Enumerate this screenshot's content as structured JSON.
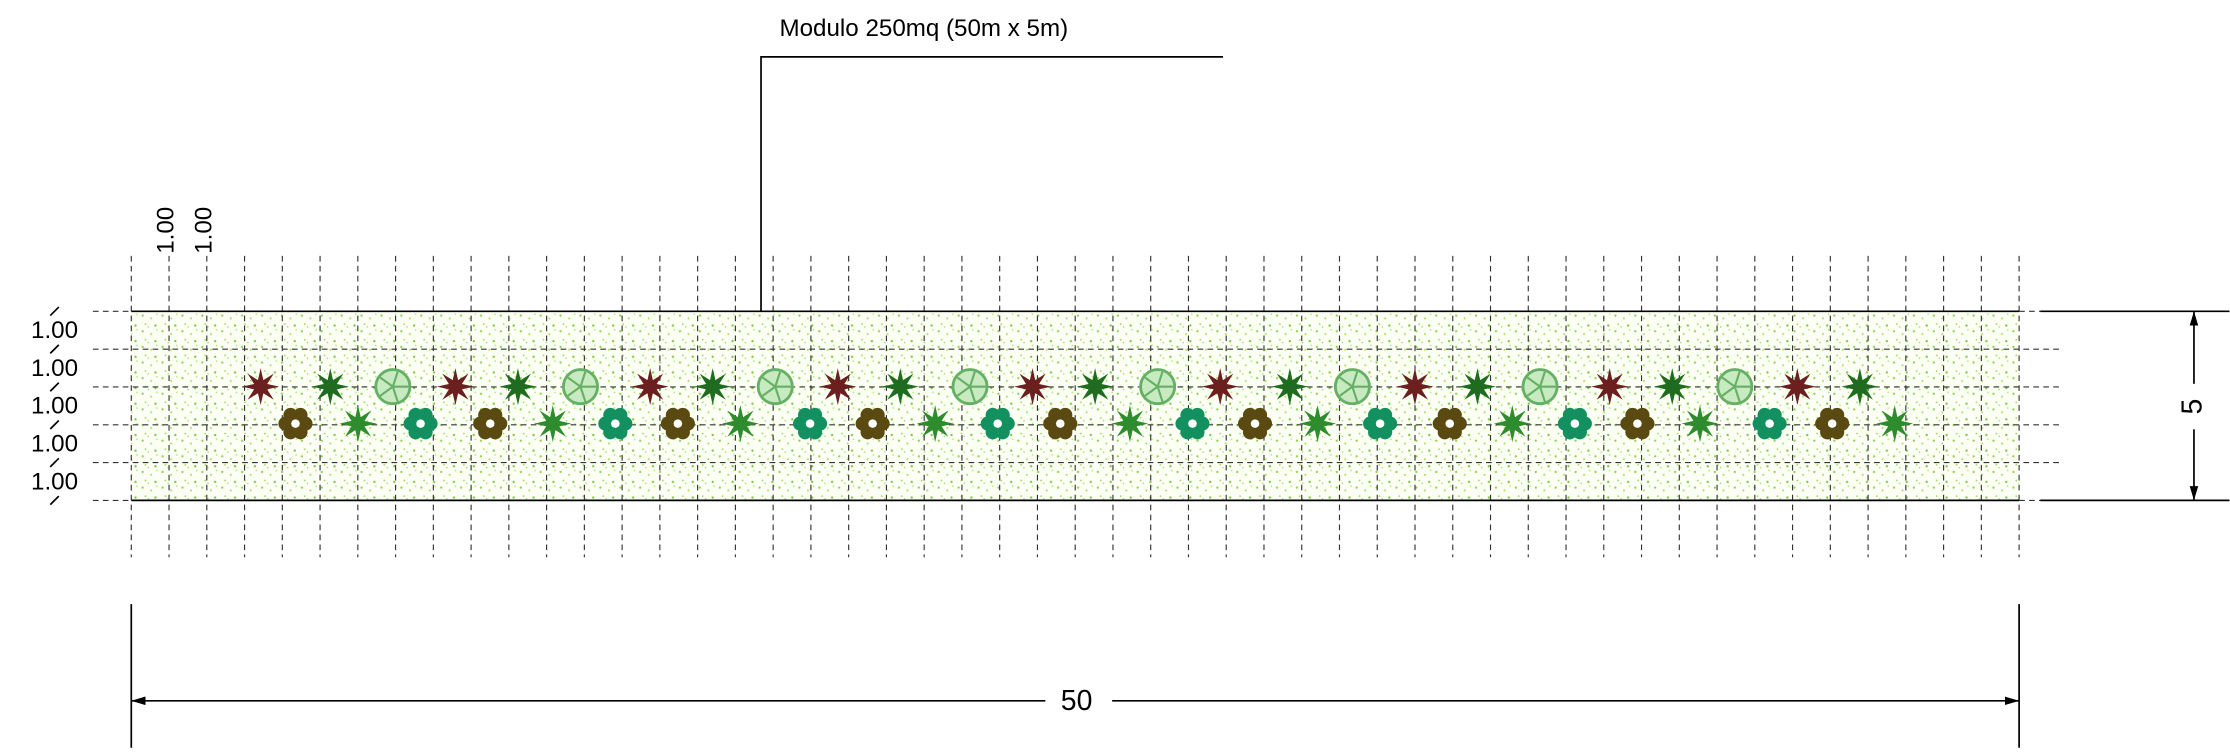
{
  "title": "Modulo 250mq (50m x 5m)",
  "row_labels": [
    "1.00",
    "1.00",
    "1.00",
    "1.00",
    "1.00"
  ],
  "column_labels": [
    "1.00",
    "1.00"
  ],
  "dimensions": {
    "length": "50",
    "width": "5"
  }
}
